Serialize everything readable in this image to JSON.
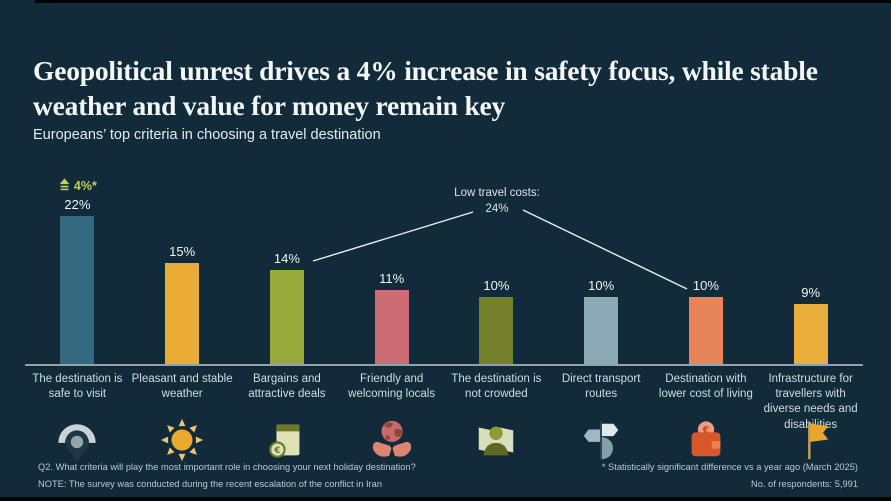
{
  "header": {
    "title": "Geopolitical unrest drives a 4% increase in safety focus, while stable weather and value for money remain key",
    "subtitle": "Europeans’ top criteria in choosing a travel destination"
  },
  "chart_data": {
    "type": "bar",
    "title": "Geopolitical unrest drives a 4% increase in safety focus, while stable weather and value for money remain key",
    "subtitle": "Europeans’ top criteria in choosing a travel destination",
    "unit": "%",
    "categories": [
      "The destination is safe to visit",
      "Pleasant and stable weather",
      "Bargains and attractive deals",
      "Friendly and welcoming locals",
      "The destination is not crowded",
      "Direct transport routes",
      "Destination with lower cost of living",
      "Infrastructure for travellers with diverse needs and disabilities"
    ],
    "values": [
      22,
      15,
      14,
      11,
      10,
      10,
      10,
      9
    ],
    "value_labels": [
      "22%",
      "15%",
      "14%",
      "11%",
      "10%",
      "10%",
      "10%",
      "9%"
    ],
    "bar_colors": [
      "#34697f",
      "#e9ac35",
      "#9aa93c",
      "#cc6c75",
      "#75802b",
      "#8aa9b4",
      "#e6855a",
      "#e9ae3c"
    ],
    "icons": [
      "safe-destination-pin-icon",
      "sun-icon",
      "wallet-deals-icon",
      "hands-globe-icon",
      "person-alone-icon",
      "signpost-icon",
      "wallet-cost-icon",
      "flag-icon"
    ],
    "ylim": [
      0,
      24
    ],
    "grid": false,
    "legend": false,
    "change_badge": {
      "bar_index": 0,
      "label": "4%*",
      "direction": "up",
      "color": "#c3cf52"
    },
    "callout": {
      "label": "Low travel costs:",
      "value": "24%",
      "connects": [
        "Bargains and attractive deals",
        "Destination with lower cost of living"
      ]
    }
  },
  "footnotes": {
    "q_line": "Q2. What criteria will play the most important role in choosing your next holiday destination?",
    "note_line": "NOTE: The survey was conducted during the recent escalation of the conflict in Iran",
    "significance_line": "* Statistically significant difference vs a year ago (March 2025)",
    "respondents_line": "No. of respondents: 5,991"
  },
  "colors": {
    "background": "#122b3b",
    "axis": "#93a1a9",
    "badge_green": "#c3cf52",
    "callout_line": "#eaf0f1"
  }
}
